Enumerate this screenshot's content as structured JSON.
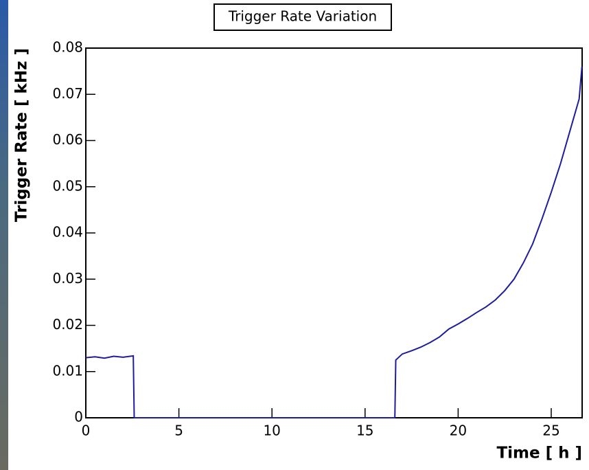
{
  "chart_data": {
    "type": "line",
    "title": "Trigger Rate Variation",
    "x_label": "Time [ h ]",
    "y_label": "Trigger Rate [ kHz ]",
    "x": [
      0,
      0.5,
      1,
      1.5,
      2,
      2.55,
      2.6,
      5,
      10,
      16.6,
      16.65,
      17,
      17.5,
      18,
      18.5,
      19,
      19.5,
      20,
      20.5,
      21,
      21.5,
      22,
      22.5,
      23,
      23.5,
      24,
      24.5,
      25,
      25.5,
      26,
      26.5,
      26.65
    ],
    "values": [
      0.013,
      0.0132,
      0.0129,
      0.0133,
      0.0131,
      0.0134,
      0,
      0,
      0,
      0,
      0.0125,
      0.0138,
      0.0145,
      0.0153,
      0.0163,
      0.0175,
      0.0192,
      0.0203,
      0.0215,
      0.0228,
      0.024,
      0.0255,
      0.0275,
      0.03,
      0.0335,
      0.0376,
      0.043,
      0.0488,
      0.055,
      0.062,
      0.069,
      0.076
    ],
    "color": "#1c1c9c",
    "xlim": [
      0,
      26.66
    ],
    "ylim": [
      0,
      0.08
    ],
    "xticks": [
      0,
      5,
      10,
      15,
      20,
      25
    ],
    "yticks": [
      0,
      0.01,
      0.02,
      0.03,
      0.04,
      0.05,
      0.06,
      0.07,
      0.08
    ]
  }
}
